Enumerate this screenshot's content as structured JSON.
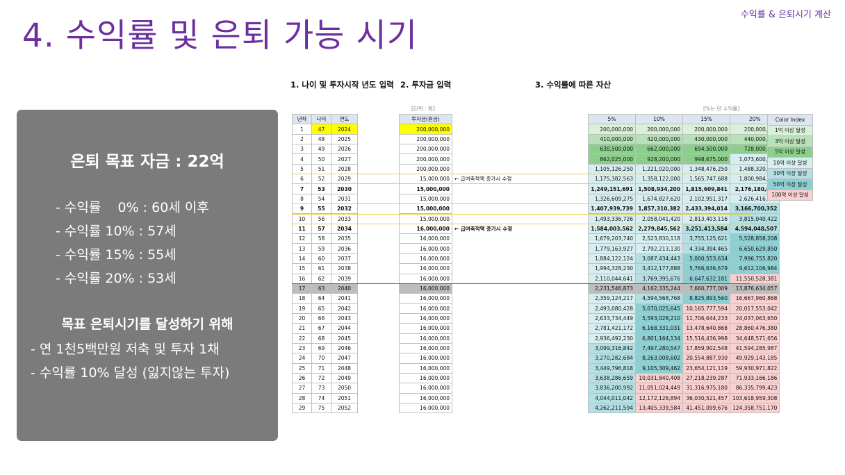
{
  "slide": {
    "title": "4. 수익률 및 은퇴 가능 시기",
    "corner_label": "수익률 & 은퇴시기 계산"
  },
  "panel": {
    "goal": "은퇴 목표 자금 : 22억",
    "rates": [
      "- 수익률    0% : 60세 이후",
      "- 수익률 10% : 57세",
      "- 수익률 15% : 55세",
      "- 수익률 20% : 53세"
    ],
    "subtitle": "목표 은퇴시기를 달성하기 위해",
    "actions": [
      "- 연 1천5백만원 저축 및 투자 1채",
      "- 수익률 10% 달성 (잃지않는 투자)"
    ]
  },
  "sheet": {
    "section1": "1. 나이 및 투자시작 년도 입력",
    "section2": "2. 투자금 입력",
    "section3": "3. 수익률에 따른 자산",
    "unit_left": "[단위 : 원]",
    "unit_right": "[%는 년 수익률]",
    "headers": [
      "년차",
      "나이",
      "연도",
      "투자금(원금)",
      "5%",
      "10%",
      "15%",
      "20%"
    ],
    "note": "← 급여축적액 증가시 수정",
    "rows": [
      [
        "1",
        "47",
        "2024",
        "200,000,000",
        "200,000,000",
        "200,000,000",
        "200,000,000",
        "200,000,000"
      ],
      [
        "2",
        "48",
        "2025",
        "200,000,000",
        "410,000,000",
        "420,000,000",
        "430,000,000",
        "440,000,000"
      ],
      [
        "3",
        "49",
        "2026",
        "200,000,000",
        "630,500,000",
        "662,000,000",
        "694,500,000",
        "728,000,000"
      ],
      [
        "4",
        "50",
        "2027",
        "200,000,000",
        "862,025,000",
        "928,200,000",
        "998,675,000",
        "1,073,600,000"
      ],
      [
        "5",
        "51",
        "2028",
        "200,000,000",
        "1,105,126,250",
        "1,221,020,000",
        "1,348,476,250",
        "1,488,320,000"
      ],
      [
        "6",
        "52",
        "2029",
        "15,000,000",
        "1,175,382,563",
        "1,358,122,000",
        "1,565,747,688",
        "1,800,984,000"
      ],
      [
        "7",
        "53",
        "2030",
        "15,000,000",
        "1,249,151,691",
        "1,508,934,200",
        "1,815,609,841",
        "2,176,180,800"
      ],
      [
        "8",
        "54",
        "2031",
        "15,000,000",
        "1,326,609,275",
        "1,674,827,620",
        "2,102,951,317",
        "2,626,416,960"
      ],
      [
        "9",
        "55",
        "2032",
        "15,000,000",
        "1,407,939,739",
        "1,857,310,382",
        "2,433,394,014",
        "3,166,700,352"
      ],
      [
        "10",
        "56",
        "2033",
        "15,000,000",
        "1,493,336,726",
        "2,058,041,420",
        "2,813,403,116",
        "3,815,040,422"
      ],
      [
        "11",
        "57",
        "2034",
        "16,000,000",
        "1,584,003,562",
        "2,279,845,562",
        "3,251,413,584",
        "4,594,048,507"
      ],
      [
        "12",
        "58",
        "2035",
        "16,000,000",
        "1,679,203,740",
        "2,523,830,118",
        "3,755,125,621",
        "5,528,858,208"
      ],
      [
        "13",
        "59",
        "2036",
        "16,000,000",
        "1,779,163,927",
        "2,792,213,130",
        "4,334,394,465",
        "6,650,629,850"
      ],
      [
        "14",
        "60",
        "2037",
        "16,000,000",
        "1,884,122,124",
        "3,087,434,443",
        "5,000,553,634",
        "7,996,755,820"
      ],
      [
        "15",
        "61",
        "2038",
        "16,000,000",
        "1,994,328,230",
        "3,412,177,888",
        "5,766,636,679",
        "9,612,106,984"
      ],
      [
        "16",
        "62",
        "2039",
        "16,000,000",
        "2,110,044,641",
        "3,769,395,676",
        "6,647,632,181",
        "11,550,528,381"
      ],
      [
        "17",
        "63",
        "2040",
        "16,000,000",
        "2,231,546,873",
        "4,162,335,244",
        "7,660,777,009",
        "13,876,634,057"
      ],
      [
        "18",
        "64",
        "2041",
        "16,000,000",
        "2,359,124,217",
        "4,594,568,768",
        "8,825,893,560",
        "16,667,960,868"
      ],
      [
        "19",
        "65",
        "2042",
        "16,000,000",
        "2,493,080,428",
        "5,070,025,645",
        "10,165,777,594",
        "20,017,553,042"
      ],
      [
        "20",
        "66",
        "2043",
        "16,000,000",
        "2,633,734,449",
        "5,593,028,210",
        "11,706,644,233",
        "24,037,063,650"
      ],
      [
        "21",
        "67",
        "2044",
        "16,000,000",
        "2,781,421,172",
        "6,168,331,031",
        "13,478,640,868",
        "28,860,476,380"
      ],
      [
        "22",
        "68",
        "2045",
        "16,000,000",
        "2,936,492,230",
        "6,801,164,134",
        "15,516,436,998",
        "34,648,571,656"
      ],
      [
        "23",
        "69",
        "2046",
        "16,000,000",
        "3,099,316,842",
        "7,497,280,547",
        "17,859,902,548",
        "41,594,285,987"
      ],
      [
        "24",
        "70",
        "2047",
        "16,000,000",
        "3,270,282,684",
        "8,263,008,602",
        "20,554,887,930",
        "49,929,143,185"
      ],
      [
        "25",
        "71",
        "2048",
        "16,000,000",
        "3,449,796,818",
        "9,105,309,462",
        "23,654,121,119",
        "59,930,971,822"
      ],
      [
        "26",
        "72",
        "2049",
        "16,000,000",
        "3,638,286,659",
        "10,031,840,408",
        "27,218,239,287",
        "71,933,166,186"
      ],
      [
        "27",
        "73",
        "2050",
        "16,000,000",
        "3,836,200,992",
        "11,051,024,449",
        "31,316,975,180",
        "86,335,799,423"
      ],
      [
        "28",
        "74",
        "2051",
        "16,000,000",
        "4,044,011,042",
        "12,172,126,894",
        "36,030,521,457",
        "103,618,959,308"
      ],
      [
        "29",
        "75",
        "2052",
        "16,000,000",
        "4,262,211,594",
        "13,405,339,584",
        "41,451,099,676",
        "124,358,751,170"
      ]
    ],
    "legend_title": "Color Index",
    "legend": [
      "1억 이상 달성",
      "3억 이상 달성",
      "5억 이상 달성",
      "10억 이상 달성",
      "30억 이상 달성",
      "50억 이상 달성",
      "100억 이상 달성"
    ],
    "colors": {
      "c1": "#d9f0d9",
      "c3": "#b7e1b7",
      "c5": "#8ccf8c",
      "c10": "#d6eef0",
      "c30": "#b4dfe3",
      "c50": "#8ecfd3",
      "c100": "#f8d0d0",
      "yellow": "#ffff00",
      "header": "#dde5f0"
    }
  }
}
